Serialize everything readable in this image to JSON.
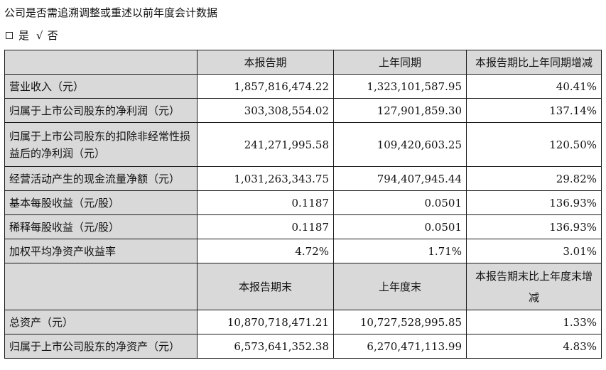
{
  "heading": "公司是否需追溯调整或重述以前年度会计数据",
  "choice": {
    "yes": "是",
    "check": "√",
    "no": "否"
  },
  "table1": {
    "headers": [
      "本报告期",
      "上年同期",
      "本报告期比上年同期增减"
    ],
    "rows": [
      {
        "label": "营业收入（元）",
        "current": "1,857,816,474.22",
        "prior": "1,323,101,587.95",
        "change": "40.41%"
      },
      {
        "label": "归属于上市公司股东的净利润（元）",
        "current": "303,308,554.02",
        "prior": "127,901,859.30",
        "change": "137.14%"
      },
      {
        "label": "归属于上市公司股东的扣除非经常性损益后的净利润（元）",
        "current": "241,271,995.58",
        "prior": "109,420,603.25",
        "change": "120.50%"
      },
      {
        "label": "经营活动产生的现金流量净额（元）",
        "current": "1,031,263,343.75",
        "prior": "794,407,945.44",
        "change": "29.82%"
      },
      {
        "label": "基本每股收益（元/股）",
        "current": "0.1187",
        "prior": "0.0501",
        "change": "136.93%"
      },
      {
        "label": "稀释每股收益（元/股）",
        "current": "0.1187",
        "prior": "0.0501",
        "change": "136.93%"
      },
      {
        "label": "加权平均净资产收益率",
        "current": "4.72%",
        "prior": "1.71%",
        "change": "3.01%"
      }
    ]
  },
  "table2": {
    "headers": [
      "本报告期末",
      "上年度末",
      "本报告期末比上年度末增减"
    ],
    "rows": [
      {
        "label": "总资产（元）",
        "current": "10,870,718,471.21",
        "prior": "10,727,528,995.85",
        "change": "1.33%"
      },
      {
        "label": "归属于上市公司股东的净资产（元）",
        "current": "6,573,641,352.38",
        "prior": "6,270,471,113.99",
        "change": "4.83%"
      }
    ]
  }
}
